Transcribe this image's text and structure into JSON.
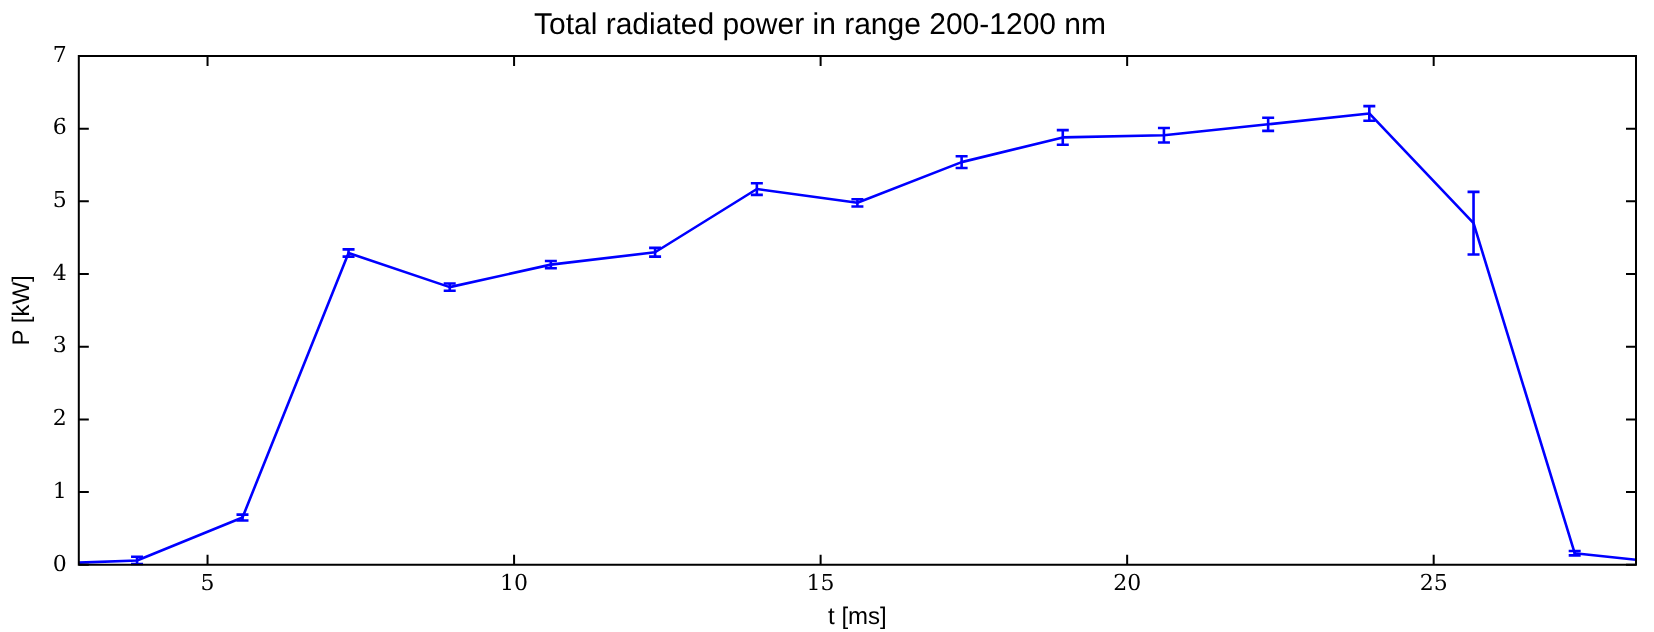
{
  "chart_data": {
    "type": "line",
    "title": "Total radiated power in range 200-1200 nm",
    "xlabel": "t [ms]",
    "ylabel": "P [kW]",
    "x": [
      2.9,
      3.85,
      5.57,
      7.3,
      8.95,
      10.6,
      12.3,
      13.96,
      15.6,
      17.3,
      18.95,
      20.6,
      22.3,
      23.95,
      25.65,
      27.3,
      28.3
    ],
    "series": [
      {
        "color": "#0000ff",
        "values": [
          0.03,
          0.06,
          0.65,
          4.29,
          3.82,
          4.13,
          4.3,
          5.17,
          4.98,
          5.54,
          5.88,
          5.91,
          6.06,
          6.21,
          4.7,
          0.16,
          0.07
        ],
        "errors": [
          null,
          0.05,
          0.04,
          0.05,
          0.05,
          0.05,
          0.06,
          0.08,
          0.05,
          0.08,
          0.1,
          0.1,
          0.09,
          0.1,
          0.43,
          0.03,
          null
        ]
      }
    ],
    "xlim": [
      2.9,
      28.3
    ],
    "xticks": [
      5,
      10,
      15,
      20,
      25
    ],
    "ylim": [
      0,
      7
    ],
    "yticks": [
      0,
      1,
      2,
      3,
      4,
      5,
      6,
      7
    ],
    "grid": false,
    "legend": false,
    "line_style": "solid"
  }
}
